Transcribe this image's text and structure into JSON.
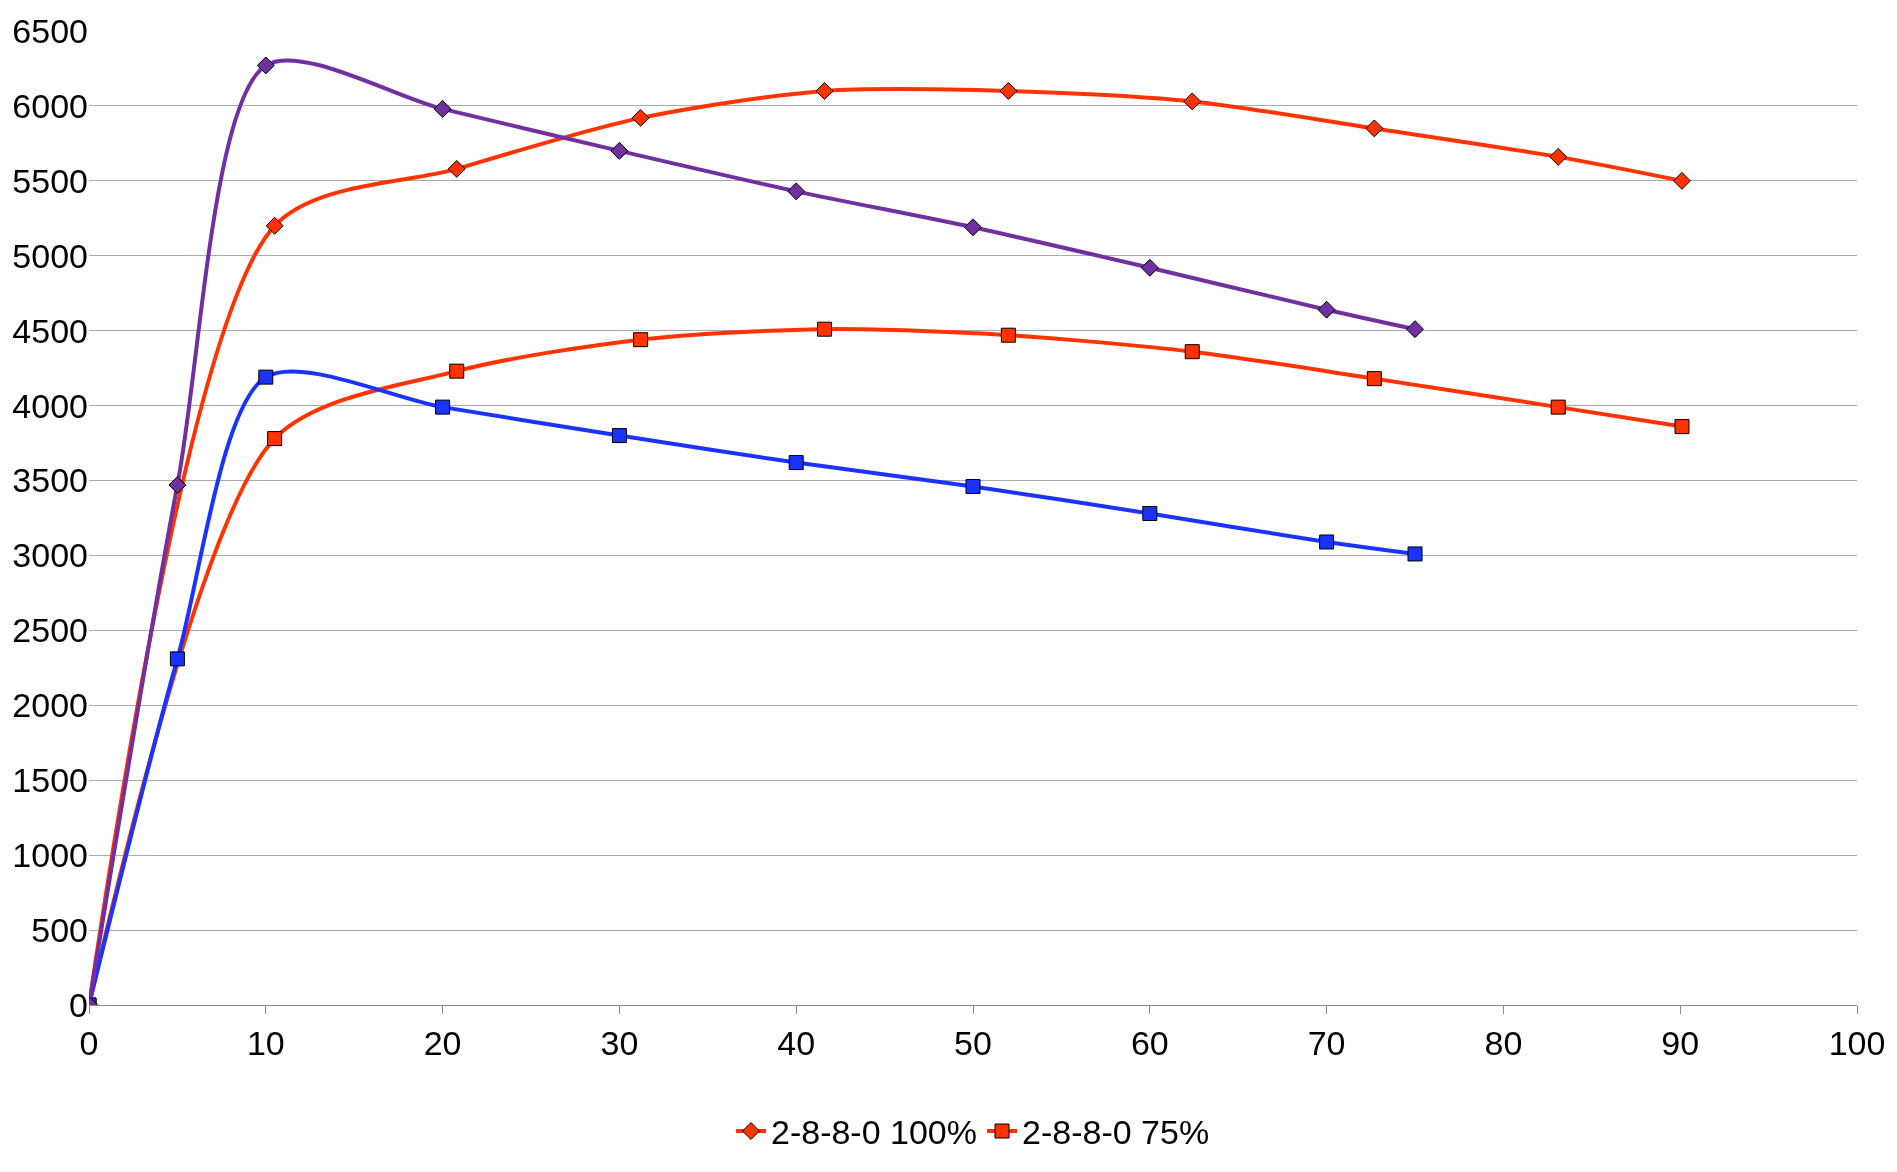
{
  "chart_data": {
    "type": "line",
    "xlim": [
      0,
      100
    ],
    "xticks": [
      0,
      10,
      20,
      30,
      40,
      50,
      60,
      70,
      80,
      90,
      100
    ],
    "ylim": [
      0,
      6500
    ],
    "yticks": [
      0,
      500,
      1000,
      1500,
      2000,
      2500,
      3000,
      3500,
      4000,
      4500,
      5000,
      5500,
      6000,
      6500
    ],
    "grid": "y",
    "legend": "bottom",
    "series": [
      {
        "name": "2-8-8-0 100%",
        "color": "#ff3300",
        "marker": "diamond",
        "x": [
          0,
          10.5,
          20.8,
          31.2,
          41.6,
          52,
          62.4,
          72.7,
          83.1,
          90.1
        ],
        "values": [
          0,
          5200,
          5580,
          5920,
          6100,
          6100,
          6030,
          5850,
          5660,
          5500
        ]
      },
      {
        "name": "2-8-8-0 75%",
        "color": "#ff3300",
        "marker": "square",
        "x": [
          0,
          10.5,
          20.8,
          31.2,
          41.6,
          52,
          62.4,
          72.7,
          83.1,
          90.1
        ],
        "values": [
          0,
          3780,
          4230,
          4440,
          4510,
          4470,
          4360,
          4180,
          3990,
          3860
        ]
      },
      {
        "color": "#1a33ff",
        "marker": "square",
        "x": [
          0,
          5,
          10,
          20,
          30,
          40,
          50,
          60,
          70,
          75
        ],
        "values": [
          0,
          2310,
          4190,
          3990,
          3800,
          3620,
          3460,
          3280,
          3090,
          3010
        ]
      },
      {
        "color": "#7030a0",
        "marker": "diamond",
        "x": [
          0,
          5,
          10,
          20,
          30,
          40,
          50,
          60,
          70,
          75
        ],
        "values": [
          0,
          3470,
          6270,
          5980,
          5700,
          5430,
          5190,
          4920,
          4640,
          4510
        ]
      }
    ]
  }
}
